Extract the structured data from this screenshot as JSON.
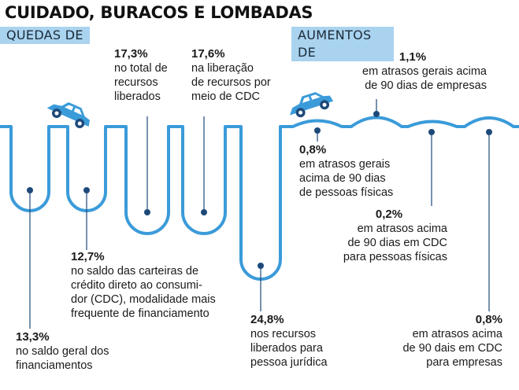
{
  "title": "CUIDADO, BURACOS E LOMBADAS",
  "labels": {
    "falls": "QUEDAS DE",
    "rises": "AUMENTOS DE"
  },
  "colors": {
    "road": "#3b9bd9",
    "label_bg": "#a9d3ef",
    "marker": "#1e4a7a",
    "car": "#3b9bd9"
  },
  "falls": [
    {
      "value": "13,3%",
      "text": "no saldo geral dos\nfinanciamentos"
    },
    {
      "value": "12,7%",
      "text": "no saldo das carteiras de\ncrédito direto ao consumi-\ndor (CDC), modalidade mais\nfrequente de financiamento"
    },
    {
      "value": "17,3%",
      "text": "no total de\nrecursos\nliberados"
    },
    {
      "value": "17,6%",
      "text": "na liberação\nde recursos por\nmeio de CDC"
    },
    {
      "value": "24,8%",
      "text": "nos recursos\nliberados para\npessoa jurídica"
    }
  ],
  "rises": [
    {
      "value": "0,8%",
      "text": "em atrasos gerais\nacima de 90 dias\nde pessoas físicas"
    },
    {
      "value": "1,1%",
      "text": "em atrasos gerais acima\nde 90 dias de empresas"
    },
    {
      "value": "0,2%",
      "text": "em atrasos acima\nde 90 dias em CDC\npara pessoas físicas"
    },
    {
      "value": "0,8%",
      "text": "em atrasos acima\nde 90 dais em CDC\npara empresas"
    }
  ]
}
